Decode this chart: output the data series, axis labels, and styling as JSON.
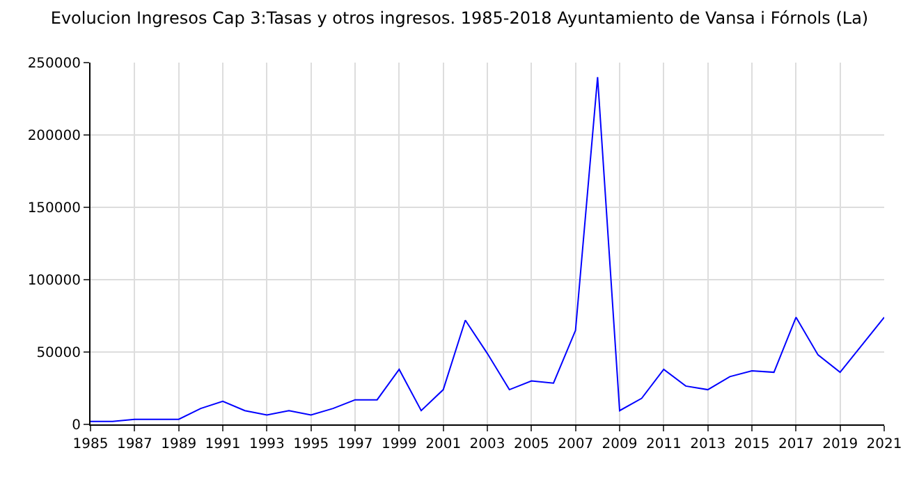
{
  "chart_data": {
    "type": "line",
    "title": "Evolucion Ingresos Cap 3:Tasas y otros ingresos. 1985-2018 Ayuntamiento de Vansa i Fórnols (La)",
    "x": [
      1985,
      1986,
      1987,
      1988,
      1989,
      1990,
      1991,
      1992,
      1993,
      1994,
      1995,
      1996,
      1997,
      1998,
      1999,
      2000,
      2001,
      2002,
      2003,
      2004,
      2005,
      2006,
      2007,
      2008,
      2009,
      2010,
      2011,
      2012,
      2013,
      2014,
      2015,
      2016,
      2017,
      2018,
      2019,
      2020,
      2021
    ],
    "series": [
      {
        "color": "#0000ff",
        "values": [
          2000,
          2000,
          3500,
          3500,
          3500,
          11000,
          16000,
          9500,
          6500,
          9500,
          6500,
          11000,
          17000,
          17000,
          38000,
          9500,
          24000,
          72000,
          49000,
          24000,
          30000,
          28500,
          65000,
          240000,
          9500,
          18000,
          38000,
          26500,
          24000,
          33000,
          37000,
          36000,
          74000,
          48000,
          36000,
          55000,
          74000
        ]
      }
    ],
    "xlim": [
      1985,
      2021
    ],
    "xticks": [
      1985,
      1987,
      1989,
      1991,
      1993,
      1995,
      1997,
      1999,
      2001,
      2003,
      2005,
      2007,
      2009,
      2011,
      2013,
      2015,
      2017,
      2019,
      2021
    ],
    "ylim": [
      0,
      250000
    ],
    "yticks": [
      0,
      50000,
      100000,
      150000,
      200000,
      250000
    ],
    "grid": true,
    "legend": false,
    "marker": "none",
    "line_style": "solid"
  }
}
